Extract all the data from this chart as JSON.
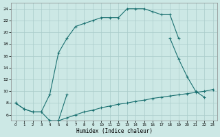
{
  "xlabel": "Humidex (Indice chaleur)",
  "bg_color": "#cce8e5",
  "grid_color": "#aaccca",
  "line_color": "#1a7070",
  "xlim": [
    -0.5,
    23.5
  ],
  "ylim": [
    5.0,
    25.0
  ],
  "yticks": [
    6,
    8,
    10,
    12,
    14,
    16,
    18,
    20,
    22,
    24
  ],
  "line1_x": [
    0,
    1,
    2,
    3,
    4,
    5,
    6,
    7,
    8,
    9,
    10,
    11,
    12,
    13,
    14,
    15,
    16,
    17,
    18,
    19
  ],
  "line1_y": [
    8.0,
    7.0,
    6.5,
    6.5,
    9.5,
    16.5,
    19.0,
    21.0,
    21.5,
    22.0,
    22.5,
    22.5,
    22.5,
    24.0,
    24.0,
    24.0,
    23.5,
    23.0,
    23.0,
    19.0
  ],
  "line2a_x": [
    0,
    1,
    2,
    3,
    4,
    5,
    6
  ],
  "line2a_y": [
    8.0,
    7.0,
    6.5,
    6.5,
    5.0,
    5.0,
    9.5
  ],
  "line2b_x": [
    18,
    19,
    20,
    21,
    22
  ],
  "line2b_y": [
    19.0,
    15.5,
    12.5,
    10.0,
    9.0
  ],
  "line3_x": [
    4,
    5,
    6,
    7,
    8,
    9,
    10,
    11,
    12,
    13,
    14,
    15,
    16,
    17,
    18,
    19,
    20,
    21,
    22,
    23
  ],
  "line3_y": [
    5.0,
    5.0,
    5.5,
    6.0,
    6.5,
    6.8,
    7.2,
    7.5,
    7.8,
    8.0,
    8.3,
    8.5,
    8.8,
    9.0,
    9.2,
    9.4,
    9.6,
    9.8,
    10.0,
    10.3
  ]
}
